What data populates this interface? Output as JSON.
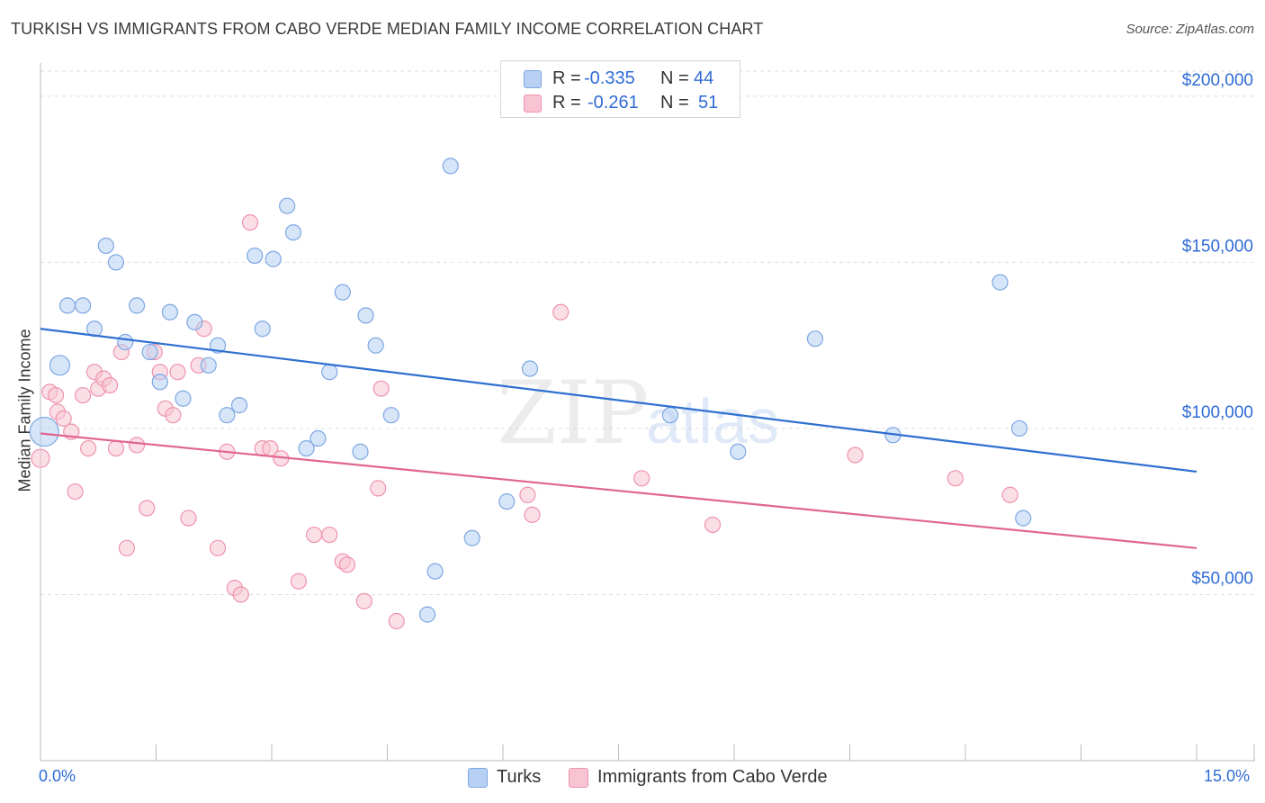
{
  "header": {
    "title": "TURKISH VS IMMIGRANTS FROM CABO VERDE MEDIAN FAMILY INCOME CORRELATION CHART",
    "source": "Source: ZipAtlas.com"
  },
  "legend_top": {
    "rows": [
      {
        "r_label": "R =",
        "r_value": "-0.335",
        "n_label": "N =",
        "n_value": "44"
      },
      {
        "r_label": "R =",
        "r_value": "-0.261",
        "n_label": "N =",
        "n_value": "51"
      }
    ]
  },
  "legend_bottom": {
    "items": [
      {
        "label": "Turks"
      },
      {
        "label": "Immigrants from Cabo Verde"
      }
    ]
  },
  "colors": {
    "turks_fill": "#b7d0f3",
    "turks_stroke": "#7ea7e4",
    "turks_line": "#2f6fd0",
    "cabo_fill": "#f8c4d3",
    "cabo_stroke": "#ee93ad",
    "cabo_line": "#e0668f",
    "grid": "#dddddd",
    "axis_text": "#2f6bd6"
  },
  "watermark": {
    "part1": "ZIP",
    "part2": "atlas"
  },
  "chart_data": {
    "type": "scatter",
    "title": "TURKISH VS IMMIGRANTS FROM CABO VERDE MEDIAN FAMILY INCOME CORRELATION CHART",
    "xlabel": "",
    "ylabel": "Median Family Income",
    "xlim": [
      0,
      15
    ],
    "ylim": [
      0,
      210000
    ],
    "x_tick_labels": [
      "0.0%",
      "15.0%"
    ],
    "y_ticks": [
      50000,
      100000,
      150000,
      200000
    ],
    "y_tick_labels": [
      "$50,000",
      "$100,000",
      "$150,000",
      "$200,000"
    ],
    "grid": true,
    "series": [
      {
        "name": "Turks",
        "r": -0.335,
        "n": 44,
        "trend": {
          "x0": 0,
          "y0": 130000,
          "x1": 15,
          "y1": 87000
        },
        "points": [
          [
            0.05,
            99000
          ],
          [
            0.25,
            119000
          ],
          [
            0.35,
            137000
          ],
          [
            0.55,
            137000
          ],
          [
            0.7,
            130000
          ],
          [
            0.85,
            155000
          ],
          [
            0.98,
            150000
          ],
          [
            1.1,
            126000
          ],
          [
            1.25,
            137000
          ],
          [
            1.42,
            123000
          ],
          [
            1.55,
            114000
          ],
          [
            1.68,
            135000
          ],
          [
            1.85,
            109000
          ],
          [
            2.0,
            132000
          ],
          [
            2.18,
            119000
          ],
          [
            2.3,
            125000
          ],
          [
            2.42,
            104000
          ],
          [
            2.58,
            107000
          ],
          [
            2.78,
            152000
          ],
          [
            2.88,
            130000
          ],
          [
            3.02,
            151000
          ],
          [
            3.2,
            167000
          ],
          [
            3.28,
            159000
          ],
          [
            3.45,
            94000
          ],
          [
            3.6,
            97000
          ],
          [
            3.75,
            117000
          ],
          [
            3.92,
            141000
          ],
          [
            4.15,
            93000
          ],
          [
            4.22,
            134000
          ],
          [
            4.35,
            125000
          ],
          [
            4.55,
            104000
          ],
          [
            5.02,
            44000
          ],
          [
            5.12,
            57000
          ],
          [
            5.32,
            179000
          ],
          [
            5.6,
            67000
          ],
          [
            6.05,
            78000
          ],
          [
            6.35,
            118000
          ],
          [
            8.17,
            104000
          ],
          [
            9.05,
            93000
          ],
          [
            10.05,
            127000
          ],
          [
            11.06,
            98000
          ],
          [
            12.45,
            144000
          ],
          [
            12.7,
            100000
          ],
          [
            12.75,
            73000
          ]
        ]
      },
      {
        "name": "Immigrants from Cabo Verde",
        "r": -0.261,
        "n": 51,
        "trend": {
          "x0": 0,
          "y0": 98500,
          "x1": 15,
          "y1": 64000
        },
        "points": [
          [
            0.0,
            91000
          ],
          [
            0.12,
            111000
          ],
          [
            0.2,
            110000
          ],
          [
            0.22,
            105000
          ],
          [
            0.3,
            103000
          ],
          [
            0.4,
            99000
          ],
          [
            0.45,
            81000
          ],
          [
            0.55,
            110000
          ],
          [
            0.62,
            94000
          ],
          [
            0.7,
            117000
          ],
          [
            0.75,
            112000
          ],
          [
            0.82,
            115000
          ],
          [
            0.9,
            113000
          ],
          [
            0.98,
            94000
          ],
          [
            1.05,
            123000
          ],
          [
            1.12,
            64000
          ],
          [
            1.25,
            95000
          ],
          [
            1.38,
            76000
          ],
          [
            1.48,
            123000
          ],
          [
            1.55,
            117000
          ],
          [
            1.62,
            106000
          ],
          [
            1.72,
            104000
          ],
          [
            1.78,
            117000
          ],
          [
            1.92,
            73000
          ],
          [
            2.05,
            119000
          ],
          [
            2.12,
            130000
          ],
          [
            2.3,
            64000
          ],
          [
            2.42,
            93000
          ],
          [
            2.52,
            52000
          ],
          [
            2.6,
            50000
          ],
          [
            2.72,
            162000
          ],
          [
            2.88,
            94000
          ],
          [
            2.98,
            94000
          ],
          [
            3.12,
            91000
          ],
          [
            3.35,
            54000
          ],
          [
            3.55,
            68000
          ],
          [
            3.75,
            68000
          ],
          [
            3.92,
            60000
          ],
          [
            3.98,
            59000
          ],
          [
            4.2,
            48000
          ],
          [
            4.38,
            82000
          ],
          [
            4.42,
            112000
          ],
          [
            4.62,
            42000
          ],
          [
            6.32,
            80000
          ],
          [
            6.38,
            74000
          ],
          [
            6.75,
            135000
          ],
          [
            7.8,
            85000
          ],
          [
            8.72,
            71000
          ],
          [
            10.57,
            92000
          ],
          [
            11.87,
            85000
          ],
          [
            12.58,
            80000
          ]
        ]
      }
    ]
  }
}
